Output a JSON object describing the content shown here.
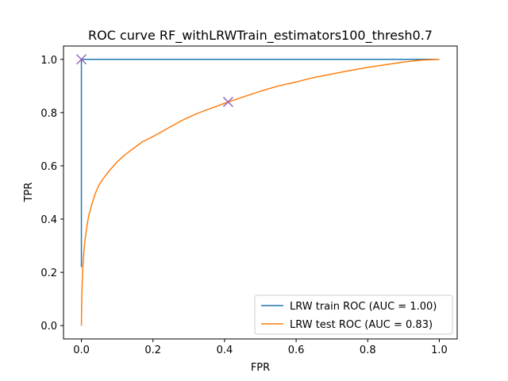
{
  "chart_data": {
    "type": "line",
    "title": "ROC curve RF_withLRWTrain_estimators100_thresh0.7",
    "xlabel": "FPR",
    "ylabel": "TPR",
    "xlim": [
      -0.05,
      1.05
    ],
    "ylim": [
      -0.05,
      1.05
    ],
    "xticks": [
      0.0,
      0.2,
      0.4,
      0.6,
      0.8,
      1.0
    ],
    "xtick_labels": [
      "0.0",
      "0.2",
      "0.4",
      "0.6",
      "0.8",
      "1.0"
    ],
    "yticks": [
      0.0,
      0.2,
      0.4,
      0.6,
      0.8,
      1.0
    ],
    "ytick_labels": [
      "0.0",
      "0.2",
      "0.4",
      "0.6",
      "0.8",
      "1.0"
    ],
    "grid": false,
    "legend_placement": "lower-right",
    "series": [
      {
        "name": "LRW train ROC (AUC = 1.00)",
        "color": "#1f77b4",
        "x": [
          0.0,
          0.0,
          0.0,
          0.01,
          1.0
        ],
        "y": [
          0.22,
          0.5,
          1.0,
          1.0,
          1.0
        ]
      },
      {
        "name": "LRW test ROC (AUC = 0.83)",
        "color": "#ff7f0e",
        "x": [
          0.0,
          0.001,
          0.002,
          0.004,
          0.007,
          0.01,
          0.015,
          0.02,
          0.03,
          0.04,
          0.05,
          0.06,
          0.08,
          0.1,
          0.12,
          0.15,
          0.17,
          0.2,
          0.24,
          0.28,
          0.32,
          0.36,
          0.4,
          0.45,
          0.5,
          0.55,
          0.6,
          0.65,
          0.7,
          0.75,
          0.8,
          0.85,
          0.9,
          0.95,
          1.0
        ],
        "y": [
          0.0,
          0.1,
          0.15,
          0.22,
          0.28,
          0.32,
          0.37,
          0.41,
          0.46,
          0.5,
          0.53,
          0.55,
          0.585,
          0.615,
          0.64,
          0.67,
          0.69,
          0.71,
          0.74,
          0.77,
          0.795,
          0.815,
          0.835,
          0.858,
          0.88,
          0.9,
          0.915,
          0.932,
          0.945,
          0.958,
          0.97,
          0.98,
          0.99,
          0.997,
          1.0
        ]
      }
    ],
    "markers": [
      {
        "series": "LRW train ROC (AUC = 1.00)",
        "x": 0.0,
        "y": 1.0,
        "symbol": "x",
        "color": "#9467bd"
      },
      {
        "series": "LRW test ROC (AUC = 0.83)",
        "x": 0.41,
        "y": 0.84,
        "symbol": "x",
        "color": "#9467bd"
      }
    ]
  }
}
